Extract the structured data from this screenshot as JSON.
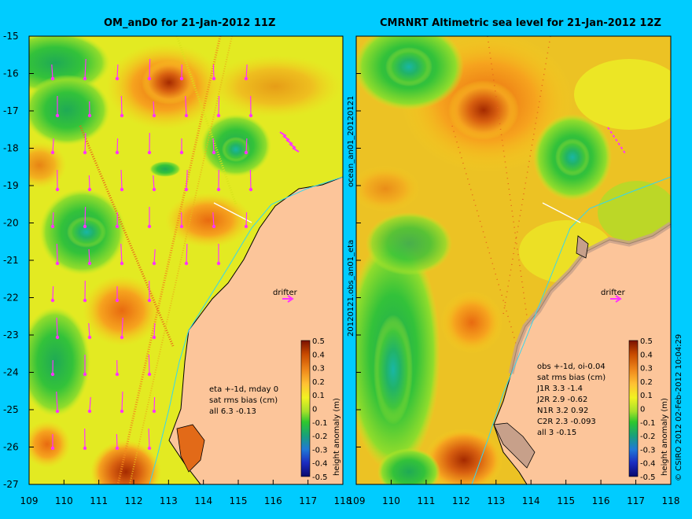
{
  "left_panel": {
    "title": "OM_anD0 for 21-Jan-2012 11Z",
    "side_label": "20120121.obs_an01_eta",
    "drifter_label": "drifter",
    "stats": [
      "eta +-1d, mday 0",
      "sat rms bias (cm)",
      "all 6.3 -0.13"
    ]
  },
  "right_panel": {
    "title": "CMRNRT Altimetric sea level  for 21-Jan-2012 12Z",
    "side_label": "ocean_an01_20120121",
    "drifter_label": "drifter",
    "stats": [
      "obs +-1d, oi-0.04",
      "sat rms bias (cm)",
      "J1R   3.3  -1.4",
      "J2R   2.9  -0.62",
      "N1R   3.2  0.92",
      "C2R   2.3  -0.093",
      "all 3  -0.15"
    ]
  },
  "axes": {
    "y_ticks": [
      "-15",
      "-16",
      "-17",
      "-18",
      "-19",
      "-20",
      "-21",
      "-22",
      "-23",
      "-24",
      "-25",
      "-26",
      "-27"
    ],
    "x_ticks": [
      "109",
      "110",
      "111",
      "112",
      "113",
      "114",
      "115",
      "116",
      "117",
      "118"
    ]
  },
  "colorbar": {
    "label": "height anomaly (m)",
    "ticks": [
      "0.5",
      "0.4",
      "0.3",
      "0.2",
      "0.1",
      "0",
      "-0.1",
      "-0.2",
      "-0.3",
      "-0.4",
      "-0.5"
    ],
    "colors": [
      "#7a1200",
      "#c84a00",
      "#f08a1c",
      "#ffc233",
      "#f2f221",
      "#a7e02a",
      "#2ec72e",
      "#18a07a",
      "#2079d6",
      "#1c2bc0",
      "#0a0a6e"
    ]
  },
  "copyright": "© CSIRO 2012  02-Feb-2012 10:04:29",
  "colors": {
    "background": "#00ccff",
    "land": "#fcc59a",
    "arrows": "#ff33ff"
  }
}
